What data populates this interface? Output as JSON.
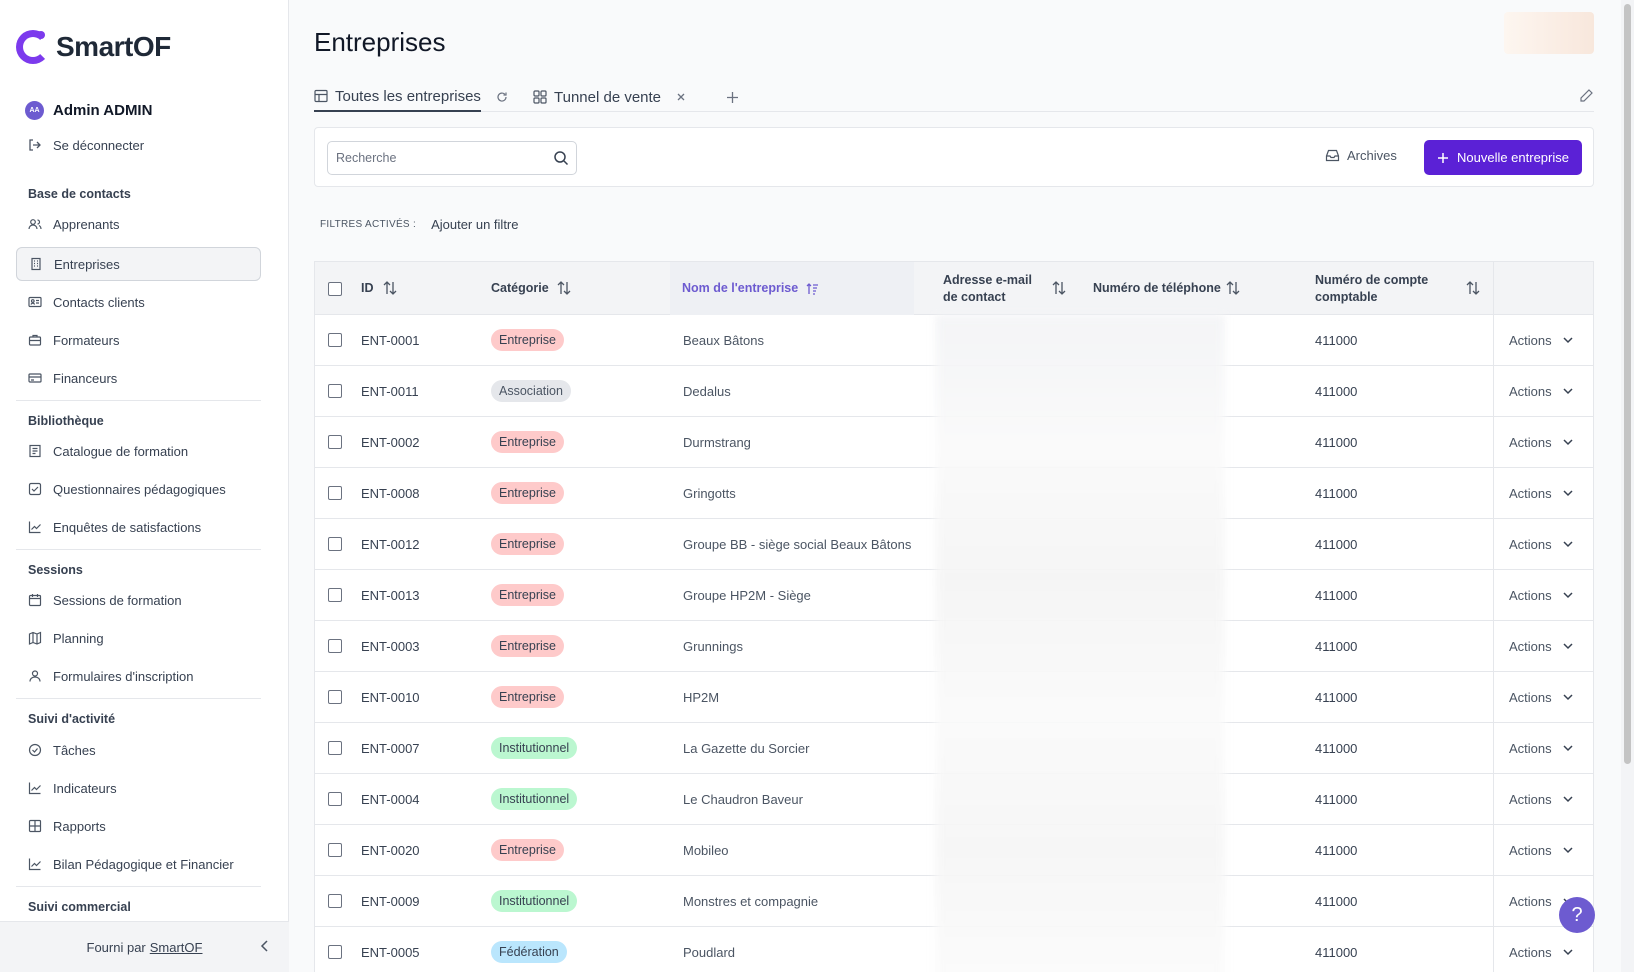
{
  "app": {
    "name": "SmartOF"
  },
  "user": {
    "initials": "AA",
    "name": "Admin ADMIN",
    "logout": "Se déconnecter"
  },
  "sidebar": {
    "sections": [
      {
        "title": "Base de contacts",
        "items": [
          "Apprenants",
          "Entreprises",
          "Contacts clients",
          "Formateurs",
          "Financeurs"
        ]
      },
      {
        "title": "Bibliothèque",
        "items": [
          "Catalogue de formation",
          "Questionnaires pédagogiques",
          "Enquêtes de satisfactions"
        ]
      },
      {
        "title": "Sessions",
        "items": [
          "Sessions de formation",
          "Planning",
          "Formulaires d'inscription"
        ]
      },
      {
        "title": "Suivi d'activité",
        "items": [
          "Tâches",
          "Indicateurs",
          "Rapports",
          "Bilan Pédagogique et Financier"
        ]
      },
      {
        "title": "Suivi commercial",
        "items": []
      }
    ],
    "active_item": "Entreprises",
    "footer": {
      "prefix": "Fourni par",
      "link": "SmartOF"
    }
  },
  "page": {
    "title": "Entreprises"
  },
  "tabs": [
    {
      "label": "Toutes les entreprises",
      "active": true
    },
    {
      "label": "Tunnel de vente",
      "active": false
    }
  ],
  "toolbar": {
    "search_placeholder": "Recherche",
    "archives_label": "Archives",
    "new_label": "Nouvelle entreprise"
  },
  "filters": {
    "label": "FILTRES ACTIVÉS :",
    "add_label": "Ajouter un filtre"
  },
  "table": {
    "columns": {
      "id": "ID",
      "category": "Catégorie",
      "name": "Nom de l'entreprise",
      "email_1": "Adresse e-mail",
      "email_2": "de contact",
      "phone": "Numéro de téléphone",
      "account_1": "Numéro de compte",
      "account_2": "comptable"
    },
    "actions_label": "Actions",
    "rows": [
      {
        "id": "ENT-0001",
        "category": "Entreprise",
        "type": "entreprise",
        "name": "Beaux Bâtons",
        "account": "411000"
      },
      {
        "id": "ENT-0011",
        "category": "Association",
        "type": "association",
        "name": "Dedalus",
        "account": "411000"
      },
      {
        "id": "ENT-0002",
        "category": "Entreprise",
        "type": "entreprise",
        "name": "Durmstrang",
        "account": "411000"
      },
      {
        "id": "ENT-0008",
        "category": "Entreprise",
        "type": "entreprise",
        "name": "Gringotts",
        "account": "411000"
      },
      {
        "id": "ENT-0012",
        "category": "Entreprise",
        "type": "entreprise",
        "name": "Groupe BB - siège social Beaux Bâtons",
        "account": "411000"
      },
      {
        "id": "ENT-0013",
        "category": "Entreprise",
        "type": "entreprise",
        "name": "Groupe HP2M - Siège",
        "account": "411000"
      },
      {
        "id": "ENT-0003",
        "category": "Entreprise",
        "type": "entreprise",
        "name": "Grunnings",
        "account": "411000"
      },
      {
        "id": "ENT-0010",
        "category": "Entreprise",
        "type": "entreprise",
        "name": "HP2M",
        "account": "411000"
      },
      {
        "id": "ENT-0007",
        "category": "Institutionnel",
        "type": "institutionnel",
        "name": "La Gazette du Sorcier",
        "account": "411000"
      },
      {
        "id": "ENT-0004",
        "category": "Institutionnel",
        "type": "institutionnel",
        "name": "Le Chaudron Baveur",
        "account": "411000"
      },
      {
        "id": "ENT-0020",
        "category": "Entreprise",
        "type": "entreprise",
        "name": "Mobileo",
        "account": "411000"
      },
      {
        "id": "ENT-0009",
        "category": "Institutionnel",
        "type": "institutionnel",
        "name": "Monstres et compagnie",
        "account": "411000"
      },
      {
        "id": "ENT-0005",
        "category": "Fédération",
        "type": "federation",
        "name": "Poudlard",
        "account": "411000"
      }
    ]
  },
  "help": {
    "label": "?"
  },
  "colors": {
    "accent": "#5b21d6",
    "brand": "#7c3aed"
  }
}
